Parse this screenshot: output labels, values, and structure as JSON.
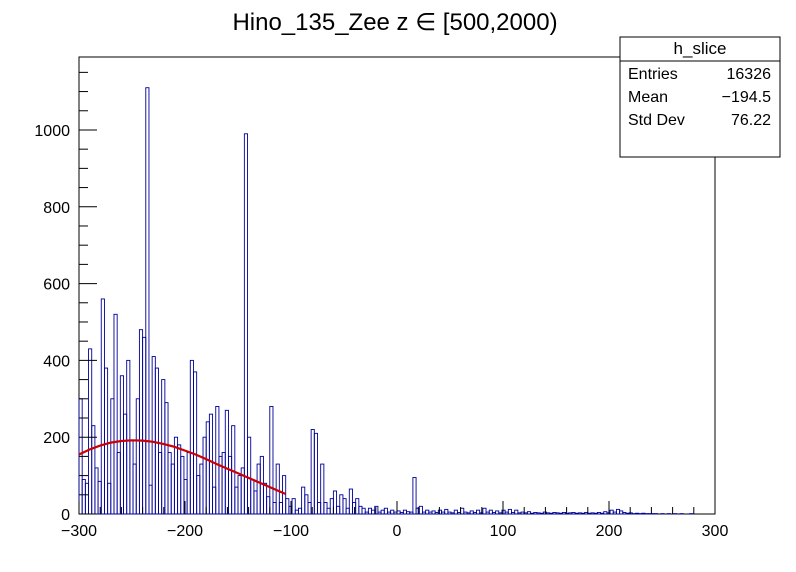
{
  "chart_data": {
    "type": "histogram",
    "title": "Hino_135_Zee z  ∈ [500,2000)",
    "xlim": [
      -300,
      300
    ],
    "ylim": [
      0,
      1190
    ],
    "x_ticks": [
      -300,
      -200,
      -100,
      0,
      100,
      200,
      300
    ],
    "x_tick_labels": [
      "−300",
      "−200",
      "−100",
      "0",
      "100",
      "200",
      "300"
    ],
    "y_ticks": [
      0,
      200,
      400,
      600,
      800,
      1000
    ],
    "y_tick_labels": [
      "0",
      "200",
      "400",
      "600",
      "800",
      "1000"
    ],
    "grid": false,
    "bin_width": 3,
    "histogram": {
      "color": "#000099",
      "bins": [
        [
          -300,
          300
        ],
        [
          -297,
          90
        ],
        [
          -294,
          80
        ],
        [
          -291,
          430
        ],
        [
          -288,
          230
        ],
        [
          -285,
          120
        ],
        [
          -282,
          85
        ],
        [
          -279,
          560
        ],
        [
          -276,
          380
        ],
        [
          -273,
          80
        ],
        [
          -270,
          300
        ],
        [
          -267,
          520
        ],
        [
          -264,
          160
        ],
        [
          -261,
          360
        ],
        [
          -258,
          260
        ],
        [
          -255,
          400
        ],
        [
          -252,
          190
        ],
        [
          -249,
          130
        ],
        [
          -246,
          300
        ],
        [
          -243,
          480
        ],
        [
          -240,
          460
        ],
        [
          -237,
          1110
        ],
        [
          -234,
          75
        ],
        [
          -231,
          410
        ],
        [
          -228,
          380
        ],
        [
          -225,
          160
        ],
        [
          -222,
          350
        ],
        [
          -219,
          290
        ],
        [
          -216,
          160
        ],
        [
          -213,
          130
        ],
        [
          -210,
          200
        ],
        [
          -207,
          180
        ],
        [
          -204,
          150
        ],
        [
          -201,
          90
        ],
        [
          -198,
          160
        ],
        [
          -195,
          400
        ],
        [
          -192,
          370
        ],
        [
          -189,
          100
        ],
        [
          -186,
          130
        ],
        [
          -183,
          200
        ],
        [
          -180,
          240
        ],
        [
          -177,
          260
        ],
        [
          -174,
          70
        ],
        [
          -171,
          280
        ],
        [
          -168,
          150
        ],
        [
          -165,
          160
        ],
        [
          -162,
          270
        ],
        [
          -159,
          150
        ],
        [
          -156,
          230
        ],
        [
          -153,
          70
        ],
        [
          -150,
          100
        ],
        [
          -147,
          120
        ],
        [
          -144,
          990
        ],
        [
          -141,
          200
        ],
        [
          -138,
          90
        ],
        [
          -135,
          60
        ],
        [
          -132,
          130
        ],
        [
          -129,
          150
        ],
        [
          -126,
          80
        ],
        [
          -123,
          45
        ],
        [
          -120,
          280
        ],
        [
          -117,
          30
        ],
        [
          -114,
          130
        ],
        [
          -111,
          30
        ],
        [
          -108,
          100
        ],
        [
          -105,
          40
        ],
        [
          -102,
          20
        ],
        [
          -99,
          40
        ],
        [
          -96,
          10
        ],
        [
          -93,
          15
        ],
        [
          -90,
          70
        ],
        [
          -87,
          50
        ],
        [
          -84,
          30
        ],
        [
          -81,
          220
        ],
        [
          -78,
          210
        ],
        [
          -75,
          30
        ],
        [
          -72,
          130
        ],
        [
          -69,
          30
        ],
        [
          -66,
          15
        ],
        [
          -63,
          40
        ],
        [
          -60,
          60
        ],
        [
          -57,
          20
        ],
        [
          -54,
          50
        ],
        [
          -51,
          40
        ],
        [
          -48,
          15
        ],
        [
          -45,
          65
        ],
        [
          -42,
          30
        ],
        [
          -39,
          40
        ],
        [
          -36,
          20
        ],
        [
          -33,
          15
        ],
        [
          -30,
          5
        ],
        [
          -27,
          15
        ],
        [
          -24,
          10
        ],
        [
          -21,
          20
        ],
        [
          -18,
          5
        ],
        [
          -15,
          10
        ],
        [
          -12,
          15
        ],
        [
          -9,
          5
        ],
        [
          -6,
          10
        ],
        [
          -3,
          5
        ],
        [
          0,
          8
        ],
        [
          3,
          4
        ],
        [
          6,
          10
        ],
        [
          9,
          6
        ],
        [
          12,
          5
        ],
        [
          15,
          95
        ],
        [
          18,
          15
        ],
        [
          21,
          20
        ],
        [
          24,
          5
        ],
        [
          27,
          10
        ],
        [
          30,
          5
        ],
        [
          33,
          8
        ],
        [
          36,
          4
        ],
        [
          39,
          10
        ],
        [
          42,
          5
        ],
        [
          45,
          12
        ],
        [
          48,
          5
        ],
        [
          51,
          3
        ],
        [
          54,
          10
        ],
        [
          57,
          4
        ],
        [
          60,
          15
        ],
        [
          63,
          5
        ],
        [
          66,
          3
        ],
        [
          69,
          8
        ],
        [
          72,
          4
        ],
        [
          75,
          10
        ],
        [
          78,
          3
        ],
        [
          81,
          15
        ],
        [
          84,
          5
        ],
        [
          87,
          10
        ],
        [
          90,
          4
        ],
        [
          93,
          8
        ],
        [
          96,
          3
        ],
        [
          99,
          10
        ],
        [
          102,
          5
        ],
        [
          105,
          12
        ],
        [
          108,
          4
        ],
        [
          111,
          10
        ],
        [
          114,
          3
        ],
        [
          117,
          5
        ],
        [
          120,
          3
        ],
        [
          123,
          6
        ],
        [
          126,
          2
        ],
        [
          129,
          4
        ],
        [
          132,
          3
        ],
        [
          135,
          2
        ],
        [
          138,
          5
        ],
        [
          141,
          3
        ],
        [
          144,
          2
        ],
        [
          147,
          4
        ],
        [
          150,
          3
        ],
        [
          153,
          2
        ],
        [
          156,
          4
        ],
        [
          159,
          2
        ],
        [
          162,
          3
        ],
        [
          165,
          4
        ],
        [
          168,
          2
        ],
        [
          171,
          3
        ],
        [
          174,
          2
        ],
        [
          177,
          4
        ],
        [
          180,
          2
        ],
        [
          183,
          3
        ],
        [
          186,
          2
        ],
        [
          189,
          4
        ],
        [
          192,
          2
        ],
        [
          195,
          6
        ],
        [
          198,
          3
        ],
        [
          201,
          10
        ],
        [
          204,
          5
        ],
        [
          207,
          12
        ],
        [
          210,
          8
        ],
        [
          213,
          4
        ],
        [
          216,
          2
        ],
        [
          219,
          3
        ],
        [
          222,
          1
        ],
        [
          225,
          2
        ],
        [
          228,
          1
        ],
        [
          231,
          2
        ],
        [
          234,
          1
        ],
        [
          237,
          1
        ],
        [
          240,
          1
        ],
        [
          243,
          1
        ],
        [
          246,
          0
        ],
        [
          249,
          1
        ],
        [
          252,
          0
        ],
        [
          255,
          1
        ],
        [
          258,
          0
        ],
        [
          261,
          1
        ],
        [
          264,
          0
        ],
        [
          267,
          1
        ],
        [
          270,
          0
        ],
        [
          273,
          0
        ],
        [
          276,
          1
        ],
        [
          279,
          0
        ],
        [
          282,
          0
        ],
        [
          285,
          0
        ],
        [
          288,
          0
        ],
        [
          291,
          0
        ],
        [
          294,
          0
        ],
        [
          297,
          0
        ]
      ]
    },
    "fit": {
      "color": "#cc0000",
      "points": [
        [
          -300,
          155
        ],
        [
          -290,
          168
        ],
        [
          -280,
          178
        ],
        [
          -270,
          186
        ],
        [
          -260,
          190
        ],
        [
          -250,
          192
        ],
        [
          -240,
          191
        ],
        [
          -230,
          188
        ],
        [
          -220,
          182
        ],
        [
          -210,
          175
        ],
        [
          -200,
          165
        ],
        [
          -190,
          155
        ],
        [
          -180,
          143
        ],
        [
          -170,
          130
        ],
        [
          -160,
          118
        ],
        [
          -150,
          106
        ],
        [
          -140,
          94
        ],
        [
          -130,
          82
        ],
        [
          -120,
          70
        ],
        [
          -110,
          58
        ],
        [
          -105,
          52
        ]
      ]
    },
    "stats_box": {
      "title": "h_slice",
      "rows": [
        {
          "label": "Entries",
          "value": "16326"
        },
        {
          "label": "Mean",
          "value": "−194.5"
        },
        {
          "label": "Std Dev",
          "value": "76.22"
        }
      ]
    }
  }
}
